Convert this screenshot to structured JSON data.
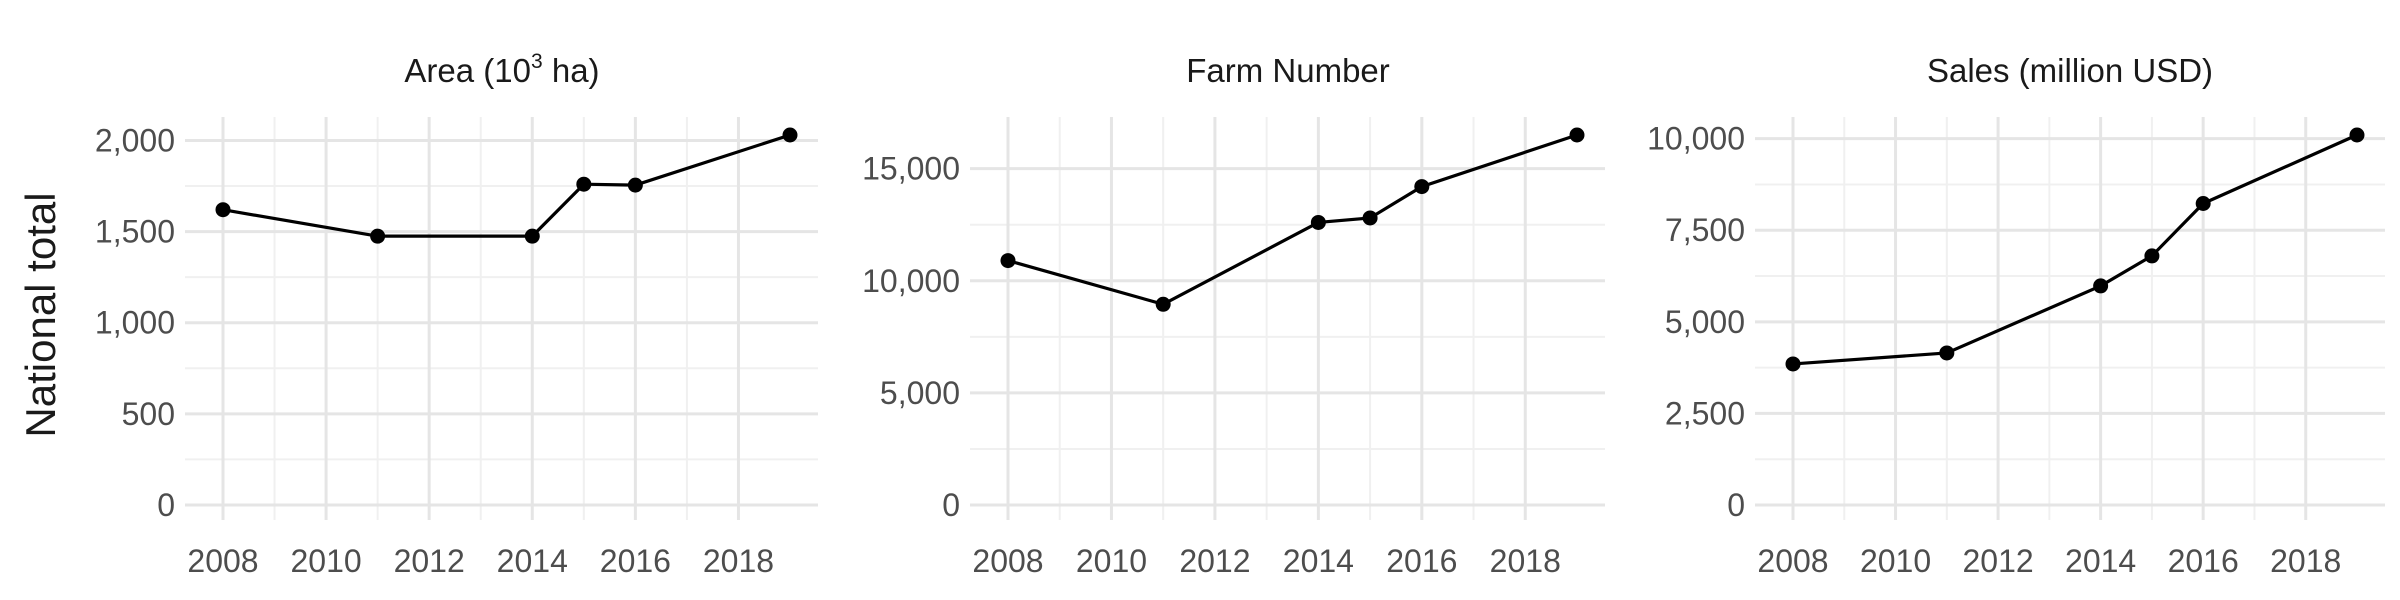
{
  "figure": {
    "ylabel": "National total"
  },
  "chart_data": [
    {
      "type": "line",
      "title": "Area (10",
      "title_superscript": "3",
      "title_suffix": " ha)",
      "xlabel": "",
      "ylabel": "National total",
      "x": [
        2008,
        2011,
        2014,
        2015,
        2016,
        2019
      ],
      "y": [
        1620,
        1475,
        1475,
        1760,
        1755,
        2030
      ],
      "xlim": [
        2008,
        2019
      ],
      "ylim": [
        0,
        2030
      ],
      "x_ticks": [
        2008,
        2010,
        2012,
        2014,
        2016,
        2018
      ],
      "x_tick_labels": [
        "2008",
        "2010",
        "2012",
        "2014",
        "2016",
        "2018"
      ],
      "y_ticks": [
        0,
        500,
        1000,
        1500,
        2000
      ],
      "y_tick_labels": [
        "0",
        "500",
        "1,000",
        "1,500",
        "2,000"
      ],
      "grid": true
    },
    {
      "type": "line",
      "title": "Farm Number",
      "xlabel": "",
      "ylabel": "",
      "x": [
        2008,
        2011,
        2014,
        2015,
        2016,
        2019
      ],
      "y": [
        10900,
        8950,
        12600,
        12800,
        14200,
        16500
      ],
      "xlim": [
        2008,
        2019
      ],
      "ylim": [
        0,
        16500
      ],
      "x_ticks": [
        2008,
        2010,
        2012,
        2014,
        2016,
        2018
      ],
      "x_tick_labels": [
        "2008",
        "2010",
        "2012",
        "2014",
        "2016",
        "2018"
      ],
      "y_ticks": [
        0,
        5000,
        10000,
        15000
      ],
      "y_tick_labels": [
        "0",
        "5,000",
        "10,000",
        "15,000"
      ],
      "grid": true
    },
    {
      "type": "line",
      "title": "Sales (million USD)",
      "xlabel": "",
      "ylabel": "",
      "x": [
        2008,
        2011,
        2014,
        2015,
        2016,
        2019
      ],
      "y": [
        3850,
        4150,
        5980,
        6800,
        8230,
        10100
      ],
      "xlim": [
        2008,
        2019
      ],
      "ylim": [
        0,
        10100
      ],
      "x_ticks": [
        2008,
        2010,
        2012,
        2014,
        2016,
        2018
      ],
      "x_tick_labels": [
        "2008",
        "2010",
        "2012",
        "2014",
        "2016",
        "2018"
      ],
      "y_ticks": [
        0,
        2500,
        5000,
        7500,
        10000
      ],
      "y_tick_labels": [
        "0",
        "2,500",
        "5,000",
        "7,500",
        "10,000"
      ],
      "grid": true
    }
  ]
}
